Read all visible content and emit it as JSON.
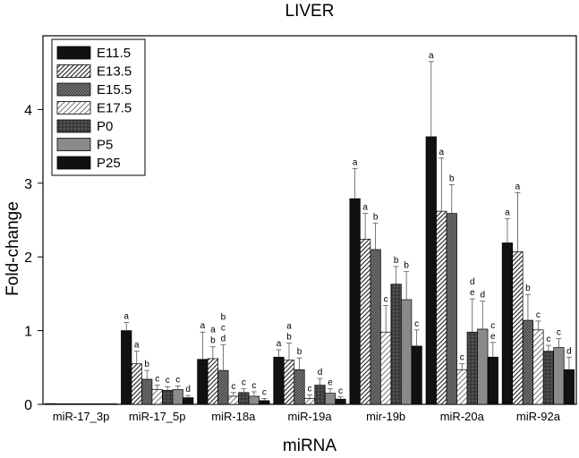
{
  "chart_data": {
    "type": "bar",
    "title": "LIVER",
    "xlabel": "miRNA",
    "ylabel": "Fold-change",
    "ylim": [
      0,
      5
    ],
    "yticks": [
      0,
      1,
      2,
      3,
      4
    ],
    "grid": false,
    "legend_position": "top-left",
    "categories": [
      "miR-17_3p",
      "miR-17_5p",
      "miR-18a",
      "miR-19a",
      "mir-19b",
      "miR-20a",
      "miR-92a"
    ],
    "series": [
      {
        "name": "E11.5",
        "pattern": "solid-black",
        "values": [
          0.01,
          1.0,
          0.61,
          0.64,
          2.79,
          3.63,
          2.19
        ],
        "errors": [
          0.0,
          0.11,
          0.37,
          0.1,
          0.41,
          1.02,
          0.33
        ],
        "letters": [
          "",
          "a",
          "a",
          "a",
          "a",
          "a",
          "a"
        ]
      },
      {
        "name": "E13.5",
        "pattern": "diag-hatch",
        "values": [
          0.005,
          0.55,
          0.62,
          0.6,
          2.24,
          2.62,
          2.07
        ],
        "errors": [
          0.0,
          0.17,
          0.16,
          0.23,
          0.35,
          0.72,
          0.8
        ],
        "letters": [
          "",
          "a",
          "a b",
          "a b",
          "a",
          "a",
          "a"
        ]
      },
      {
        "name": "E15.5",
        "pattern": "dense-crosshatch",
        "values": [
          0.0,
          0.34,
          0.46,
          0.47,
          2.1,
          2.59,
          1.14
        ],
        "errors": [
          0.0,
          0.12,
          0.35,
          0.16,
          0.36,
          0.39,
          0.35
        ],
        "letters": [
          "",
          "b",
          "b c d",
          "b",
          "b",
          "b",
          "b"
        ]
      },
      {
        "name": "E17.5",
        "pattern": "light-diag-hatch",
        "values": [
          0.0,
          0.2,
          0.11,
          0.08,
          0.98,
          0.47,
          1.01
        ],
        "errors": [
          0.0,
          0.06,
          0.05,
          0.05,
          0.36,
          0.08,
          0.12
        ],
        "letters": [
          "",
          "c",
          "c",
          "c",
          "c",
          "c",
          "c"
        ]
      },
      {
        "name": "P0",
        "pattern": "crosshatch",
        "values": [
          0.0,
          0.19,
          0.16,
          0.26,
          1.63,
          0.98,
          0.72
        ],
        "errors": [
          0.0,
          0.05,
          0.05,
          0.09,
          0.24,
          0.45,
          0.08
        ],
        "letters": [
          "",
          "c",
          "c",
          "d",
          "b",
          "d e",
          "c"
        ]
      },
      {
        "name": "P5",
        "pattern": "solid-gray",
        "values": [
          0.0,
          0.2,
          0.11,
          0.15,
          1.42,
          1.02,
          0.77
        ],
        "errors": [
          0.0,
          0.05,
          0.06,
          0.06,
          0.38,
          0.38,
          0.12
        ],
        "letters": [
          "",
          "c",
          "c",
          "e",
          "b",
          "d",
          "c"
        ]
      },
      {
        "name": "P25",
        "pattern": "solid-black",
        "values": [
          0.0,
          0.09,
          0.05,
          0.07,
          0.79,
          0.64,
          0.47
        ],
        "errors": [
          0.0,
          0.03,
          0.03,
          0.03,
          0.22,
          0.2,
          0.17
        ],
        "letters": [
          "",
          "d",
          "c",
          "c",
          "c",
          "c e",
          "d"
        ]
      }
    ]
  }
}
